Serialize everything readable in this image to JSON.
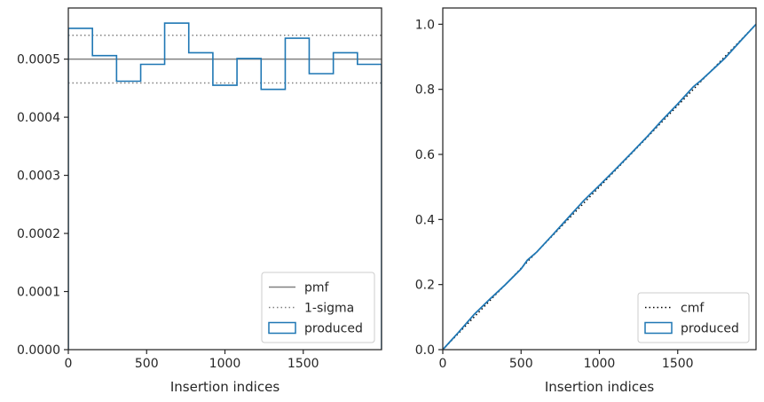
{
  "chart_data": [
    {
      "type": "line",
      "title": "",
      "xlabel": "Insertion indices",
      "ylabel": "",
      "xlim": [
        0,
        2000
      ],
      "ylim": [
        0,
        0.000588
      ],
      "xticks": [
        0,
        500,
        1000,
        1500
      ],
      "xtick_labels": [
        "0",
        "500",
        "1000",
        "1500"
      ],
      "yticks": [
        0,
        0.0001,
        0.0002,
        0.0003,
        0.0004,
        0.0005
      ],
      "ytick_labels": [
        "0.0000",
        "0.0001",
        "0.0002",
        "0.0003",
        "0.0004",
        "0.0005"
      ],
      "grid": false,
      "legend_position": "lower-right",
      "series": [
        {
          "name": "pmf",
          "kind": "hline",
          "y": 0.0005,
          "color": "#808080",
          "style": "solid"
        },
        {
          "name": "1-sigma",
          "kind": "hlines",
          "y": [
            0.000541,
            0.000459
          ],
          "color": "#808080",
          "style": "dotted"
        },
        {
          "name": "produced",
          "kind": "step-histogram",
          "color": "#1f77b4",
          "bin_edges": [
            0,
            154,
            308,
            462,
            615,
            769,
            923,
            1077,
            1231,
            1385,
            1538,
            1692,
            1846,
            2000
          ],
          "values": [
            0.000553,
            0.000506,
            0.000462,
            0.000491,
            0.000562,
            0.000511,
            0.000455,
            0.000501,
            0.000448,
            0.000536,
            0.000475,
            0.000511,
            0.000491
          ]
        }
      ]
    },
    {
      "type": "line",
      "title": "",
      "xlabel": "Insertion indices",
      "ylabel": "",
      "xlim": [
        0,
        2000
      ],
      "ylim": [
        0,
        1.05
      ],
      "xticks": [
        0,
        500,
        1000,
        1500
      ],
      "xtick_labels": [
        "0",
        "500",
        "1000",
        "1500"
      ],
      "yticks": [
        0,
        0.2,
        0.4,
        0.6,
        0.8,
        1.0
      ],
      "ytick_labels": [
        "0.0",
        "0.2",
        "0.4",
        "0.6",
        "0.8",
        "1.0"
      ],
      "grid": false,
      "legend_position": "lower-right",
      "series": [
        {
          "name": "cmf",
          "kind": "line",
          "x": [
            0,
            2000
          ],
          "y": [
            0,
            1
          ],
          "color": "#000000",
          "style": "dotted"
        },
        {
          "name": "produced",
          "kind": "line",
          "color": "#1f77b4",
          "x": [
            0,
            100,
            200,
            300,
            400,
            500,
            540,
            600,
            700,
            800,
            900,
            1000,
            1100,
            1200,
            1300,
            1400,
            1500,
            1600,
            1650,
            1700,
            1800,
            1900,
            2000
          ],
          "y": [
            0,
            0.053,
            0.108,
            0.155,
            0.2,
            0.248,
            0.275,
            0.3,
            0.352,
            0.405,
            0.458,
            0.505,
            0.553,
            0.602,
            0.652,
            0.705,
            0.755,
            0.808,
            0.828,
            0.85,
            0.895,
            0.948,
            1.0
          ]
        }
      ]
    }
  ]
}
